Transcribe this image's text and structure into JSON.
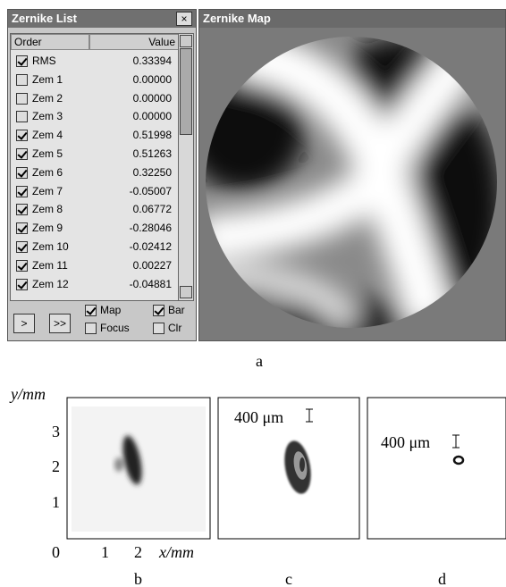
{
  "zernike_list": {
    "title": "Zernike List",
    "close": "×",
    "headers": [
      "Order",
      "Value"
    ],
    "rows": [
      {
        "name": "RMS",
        "checked": true,
        "value": "0.33394"
      },
      {
        "name": "Zem 1",
        "checked": false,
        "value": "0.00000"
      },
      {
        "name": "Zem 2",
        "checked": false,
        "value": "0.00000"
      },
      {
        "name": "Zem 3",
        "checked": false,
        "value": "0.00000"
      },
      {
        "name": "Zem 4",
        "checked": true,
        "value": "0.51998"
      },
      {
        "name": "Zem 5",
        "checked": true,
        "value": "0.51263"
      },
      {
        "name": "Zem 6",
        "checked": true,
        "value": "0.32250"
      },
      {
        "name": "Zem 7",
        "checked": true,
        "value": "-0.05007"
      },
      {
        "name": "Zem 8",
        "checked": true,
        "value": "0.06772"
      },
      {
        "name": "Zem 9",
        "checked": true,
        "value": "-0.28046"
      },
      {
        "name": "Zem 10",
        "checked": true,
        "value": "-0.02412"
      },
      {
        "name": "Zem 11",
        "checked": true,
        "value": "0.00227"
      },
      {
        "name": "Zem 12",
        "checked": true,
        "value": "-0.04881"
      }
    ],
    "buttons": [
      ">",
      ">>"
    ],
    "options": [
      {
        "label": "Map",
        "checked": true
      },
      {
        "label": "Bar",
        "checked": true
      },
      {
        "label": "Focus",
        "checked": false
      },
      {
        "label": "Clr",
        "checked": false
      }
    ]
  },
  "zernike_map": {
    "title": "Zernike Map"
  },
  "caption_a": "a",
  "panels": {
    "y_label": "y/mm",
    "x_label": "x/mm",
    "origin": "0",
    "yticks": [
      "3",
      "2",
      "1"
    ],
    "xticks": [
      "1",
      "2"
    ],
    "scale_c": "400 μm",
    "scale_d": "400 μm",
    "captions": [
      "b",
      "c",
      "d"
    ]
  }
}
